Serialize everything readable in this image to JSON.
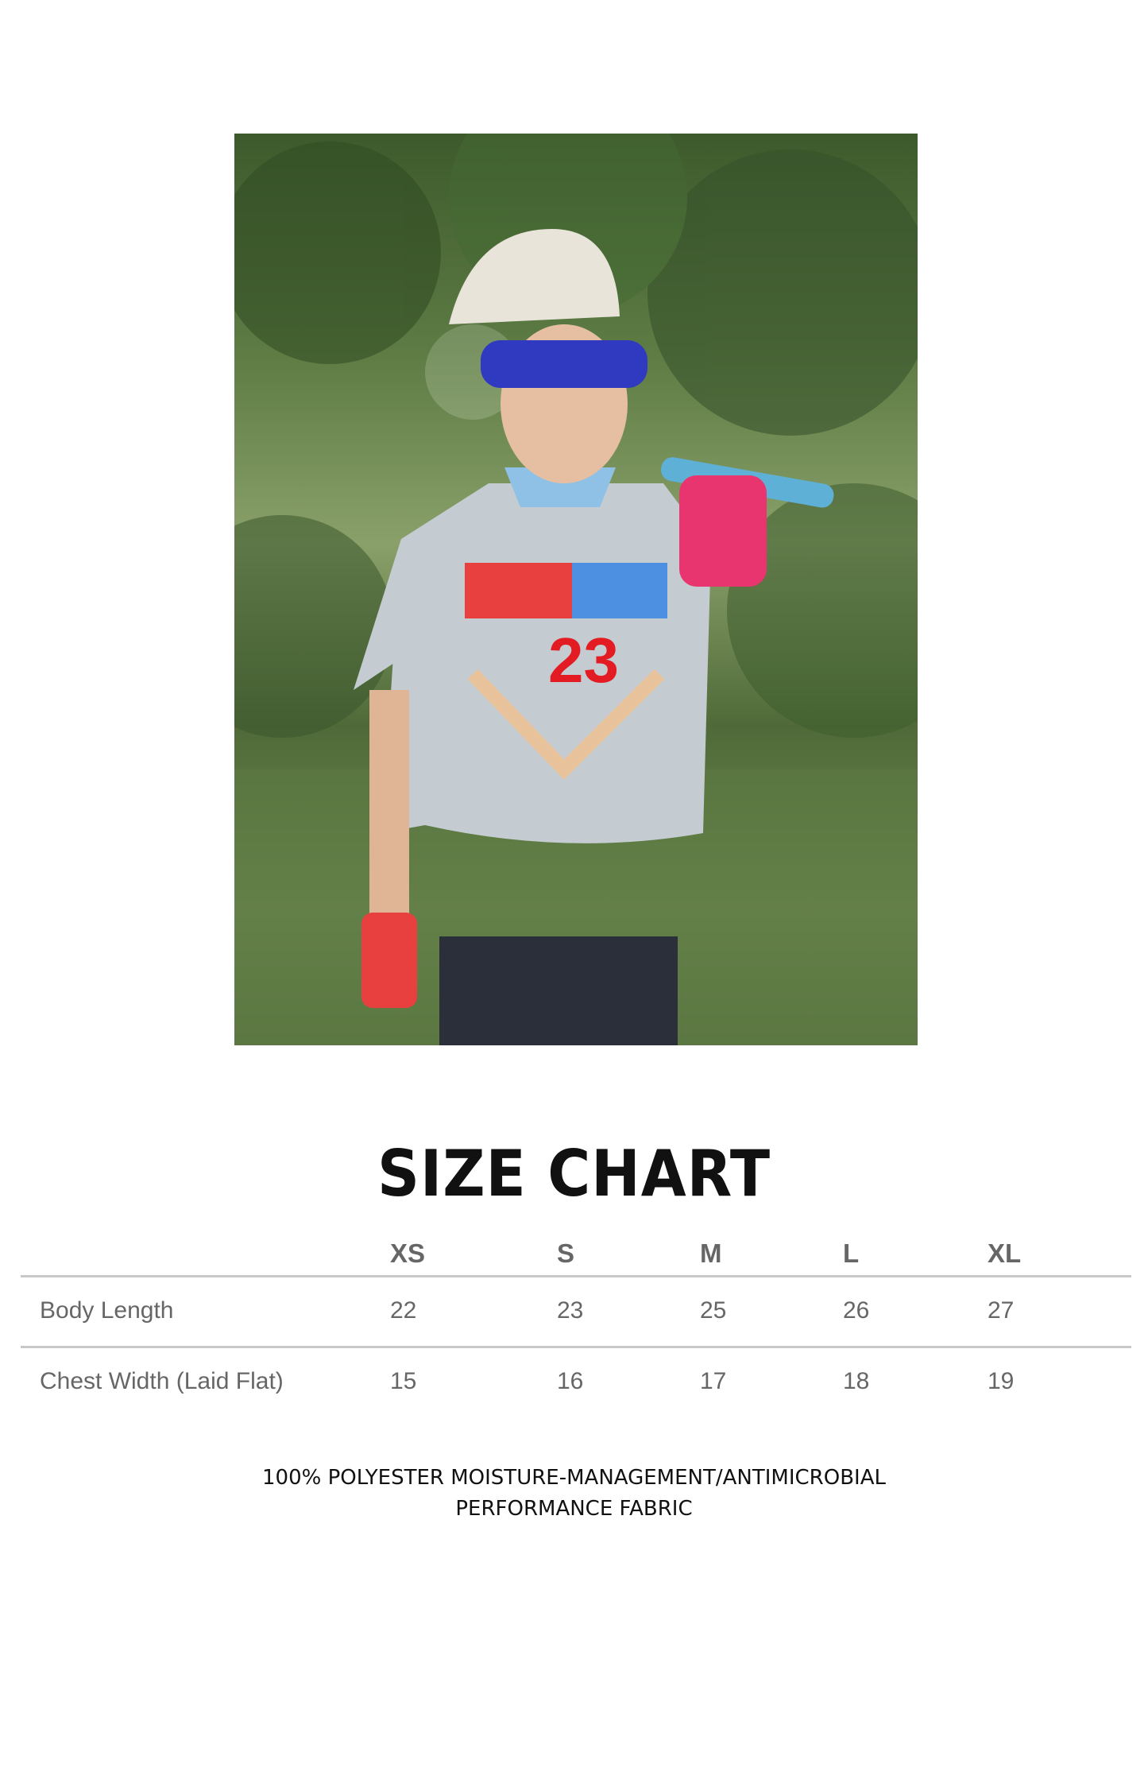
{
  "photo": {
    "alt_subject": "product-photo"
  },
  "title": "SIZE CHART",
  "table": {
    "columns": [
      "XS",
      "S",
      "M",
      "L",
      "XL"
    ],
    "rows": [
      {
        "label": "Body Length",
        "values": [
          "22",
          "23",
          "25",
          "26",
          "27"
        ]
      },
      {
        "label": "Chest Width (Laid Flat)",
        "values": [
          "15",
          "16",
          "17",
          "18",
          "19"
        ]
      }
    ]
  },
  "footer": {
    "line1": "100% POLYESTER MOISTURE-MANAGEMENT/ANTIMICROBIAL",
    "line2": "PERFORMANCE FABRIC"
  },
  "colors": {
    "text": "#111111",
    "table_text": "#666666",
    "rule": "#c8c8c8"
  }
}
